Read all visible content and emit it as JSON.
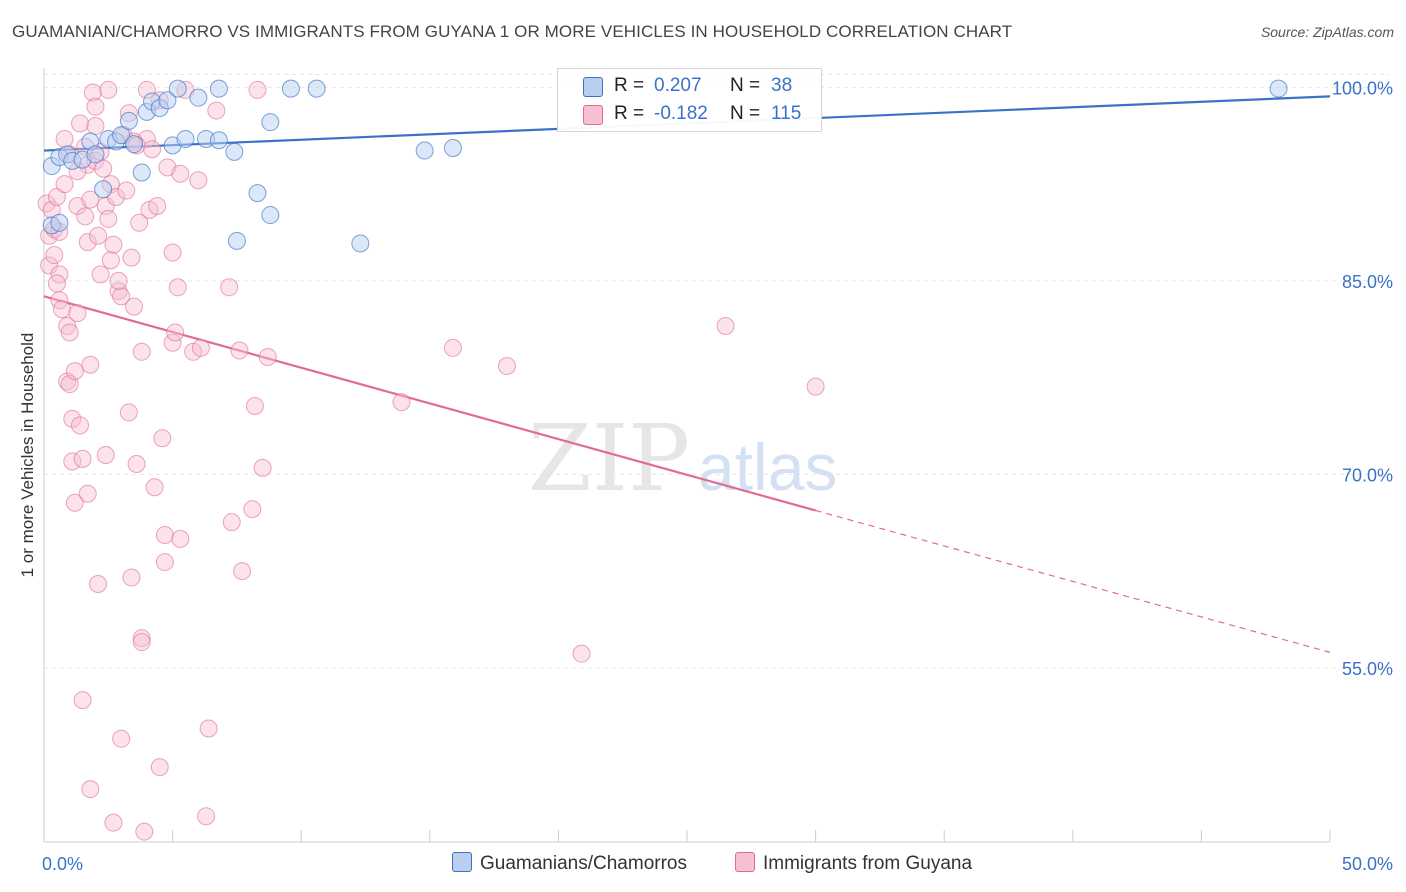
{
  "title": "GUAMANIAN/CHAMORRO VS IMMIGRANTS FROM GUYANA 1 OR MORE VEHICLES IN HOUSEHOLD CORRELATION CHART",
  "source": "Source: ZipAtlas.com",
  "watermark": {
    "zip": "ZIP",
    "atlas": "atlas"
  },
  "legend": {
    "r_label": "R =",
    "n_label": "N =",
    "blue": {
      "r": "0.207",
      "n": "38"
    },
    "pink": {
      "r": "-0.182",
      "n": "115"
    }
  },
  "colors": {
    "blue": "#3b72c8",
    "blue_fill": "#b9cff0",
    "pink": "#e06a96",
    "pink_fill": "#f6bfd2"
  },
  "chart_data": {
    "type": "scatter",
    "xlabel": "",
    "ylabel": "1 or more Vehicles in Household",
    "xlim": [
      0,
      50
    ],
    "ylim": [
      41.5,
      101.5
    ],
    "x_tick_labels": [
      "0.0%",
      "50.0%"
    ],
    "y_ticks": [
      55,
      70,
      85,
      100
    ],
    "y_tick_labels": [
      "55.0%",
      "70.0%",
      "85.0%",
      "100.0%"
    ],
    "series": [
      {
        "name": "Guamanians/Chamorros",
        "color": "#3b72c8",
        "trend": {
          "x0": 0,
          "y0": 95.1,
          "x1": 50,
          "y1": 99.3
        },
        "points": [
          [
            0.3,
            93.9
          ],
          [
            0.6,
            94.6
          ],
          [
            0.9,
            94.8
          ],
          [
            1.1,
            94.3
          ],
          [
            1.5,
            94.4
          ],
          [
            1.8,
            95.8
          ],
          [
            2.0,
            94.8
          ],
          [
            2.3,
            92.1
          ],
          [
            2.5,
            96.0
          ],
          [
            2.8,
            95.8
          ],
          [
            3.0,
            96.3
          ],
          [
            3.3,
            97.4
          ],
          [
            3.5,
            95.6
          ],
          [
            3.8,
            93.4
          ],
          [
            4.0,
            98.1
          ],
          [
            4.2,
            98.9
          ],
          [
            4.5,
            98.4
          ],
          [
            4.8,
            99.0
          ],
          [
            5.0,
            95.5
          ],
          [
            5.2,
            99.9
          ],
          [
            5.5,
            96.0
          ],
          [
            6.0,
            99.2
          ],
          [
            6.3,
            96.0
          ],
          [
            6.8,
            99.9
          ],
          [
            6.8,
            95.9
          ],
          [
            7.4,
            95.0
          ],
          [
            7.5,
            88.1
          ],
          [
            8.3,
            91.8
          ],
          [
            8.8,
            97.3
          ],
          [
            8.8,
            90.1
          ],
          [
            9.6,
            99.9
          ],
          [
            10.6,
            99.9
          ],
          [
            12.3,
            87.9
          ],
          [
            14.8,
            95.1
          ],
          [
            15.9,
            95.3
          ],
          [
            48.0,
            99.9
          ],
          [
            0.3,
            89.3
          ],
          [
            0.6,
            89.5
          ]
        ]
      },
      {
        "name": "Immigrants from Guyana",
        "color": "#e06a96",
        "trend": {
          "x0": 0,
          "y0": 83.8,
          "x1": 30,
          "y1": 67.2
        },
        "trend_ext": {
          "x0": 30,
          "y0": 67.2,
          "x1": 50,
          "y1": 56.2
        },
        "points": [
          [
            0.1,
            91.0
          ],
          [
            0.2,
            88.5
          ],
          [
            0.2,
            86.2
          ],
          [
            0.3,
            90.5
          ],
          [
            0.4,
            89.0
          ],
          [
            0.4,
            87.0
          ],
          [
            0.5,
            91.5
          ],
          [
            0.6,
            85.5
          ],
          [
            0.6,
            83.5
          ],
          [
            0.7,
            82.8
          ],
          [
            0.8,
            92.5
          ],
          [
            0.9,
            81.5
          ],
          [
            0.9,
            77.2
          ],
          [
            1.0,
            94.8
          ],
          [
            1.0,
            77.0
          ],
          [
            1.1,
            74.3
          ],
          [
            1.1,
            71.0
          ],
          [
            1.2,
            78.0
          ],
          [
            1.2,
            67.8
          ],
          [
            1.3,
            82.5
          ],
          [
            1.3,
            90.8
          ],
          [
            1.4,
            73.8
          ],
          [
            1.4,
            97.2
          ],
          [
            1.5,
            71.2
          ],
          [
            1.5,
            52.5
          ],
          [
            1.6,
            95.4
          ],
          [
            1.7,
            88.0
          ],
          [
            1.7,
            94.0
          ],
          [
            1.8,
            91.3
          ],
          [
            1.8,
            78.5
          ],
          [
            1.8,
            45.6
          ],
          [
            1.9,
            99.6
          ],
          [
            2.0,
            98.5
          ],
          [
            2.0,
            97.0
          ],
          [
            2.0,
            94.3
          ],
          [
            2.1,
            88.5
          ],
          [
            2.2,
            85.5
          ],
          [
            2.2,
            95.0
          ],
          [
            2.3,
            93.7
          ],
          [
            2.4,
            90.8
          ],
          [
            2.4,
            71.5
          ],
          [
            2.5,
            99.8
          ],
          [
            2.5,
            89.8
          ],
          [
            2.6,
            92.5
          ],
          [
            2.7,
            87.8
          ],
          [
            2.7,
            43.0
          ],
          [
            2.8,
            91.5
          ],
          [
            2.9,
            84.2
          ],
          [
            3.0,
            83.8
          ],
          [
            3.1,
            96.3
          ],
          [
            3.2,
            92.0
          ],
          [
            3.3,
            98.0
          ],
          [
            3.3,
            74.8
          ],
          [
            3.4,
            86.8
          ],
          [
            3.5,
            95.8
          ],
          [
            3.5,
            83.0
          ],
          [
            3.6,
            70.8
          ],
          [
            3.7,
            89.5
          ],
          [
            3.8,
            79.5
          ],
          [
            3.8,
            57.3
          ],
          [
            3.8,
            57.0
          ],
          [
            4.0,
            99.8
          ],
          [
            4.0,
            96.0
          ],
          [
            4.1,
            90.5
          ],
          [
            4.2,
            95.2
          ],
          [
            4.3,
            69.0
          ],
          [
            4.4,
            90.8
          ],
          [
            4.5,
            99.0
          ],
          [
            4.5,
            47.3
          ],
          [
            4.7,
            65.3
          ],
          [
            4.7,
            63.2
          ],
          [
            4.8,
            93.8
          ],
          [
            5.0,
            87.2
          ],
          [
            5.0,
            80.2
          ],
          [
            5.1,
            81.0
          ],
          [
            5.2,
            84.5
          ],
          [
            5.3,
            93.3
          ],
          [
            5.3,
            65.0
          ],
          [
            5.5,
            99.8
          ],
          [
            5.8,
            79.5
          ],
          [
            6.0,
            92.8
          ],
          [
            6.1,
            79.8
          ],
          [
            6.3,
            43.5
          ],
          [
            6.4,
            50.3
          ],
          [
            6.7,
            98.2
          ],
          [
            7.2,
            84.5
          ],
          [
            7.3,
            66.3
          ],
          [
            7.6,
            79.6
          ],
          [
            7.7,
            62.5
          ],
          [
            8.1,
            67.3
          ],
          [
            8.2,
            75.3
          ],
          [
            8.5,
            70.5
          ],
          [
            8.7,
            79.1
          ],
          [
            8.3,
            99.8
          ],
          [
            13.9,
            75.6
          ],
          [
            15.9,
            79.8
          ],
          [
            18.0,
            78.4
          ],
          [
            20.9,
            56.1
          ],
          [
            26.5,
            81.5
          ],
          [
            30.0,
            76.8
          ],
          [
            1.6,
            90.0
          ],
          [
            2.1,
            61.5
          ],
          [
            3.0,
            49.5
          ],
          [
            3.9,
            42.3
          ],
          [
            2.6,
            86.6
          ],
          [
            1.0,
            81.0
          ],
          [
            0.6,
            88.8
          ],
          [
            3.4,
            62.0
          ],
          [
            1.3,
            93.5
          ],
          [
            4.6,
            72.8
          ],
          [
            0.8,
            96.0
          ],
          [
            0.5,
            84.8
          ],
          [
            2.9,
            85.0
          ],
          [
            1.7,
            68.5
          ],
          [
            3.6,
            95.5
          ]
        ]
      }
    ]
  },
  "bottom_legend": {
    "blue_label": "Guamanians/Chamorros",
    "pink_label": "Immigrants from Guyana"
  }
}
